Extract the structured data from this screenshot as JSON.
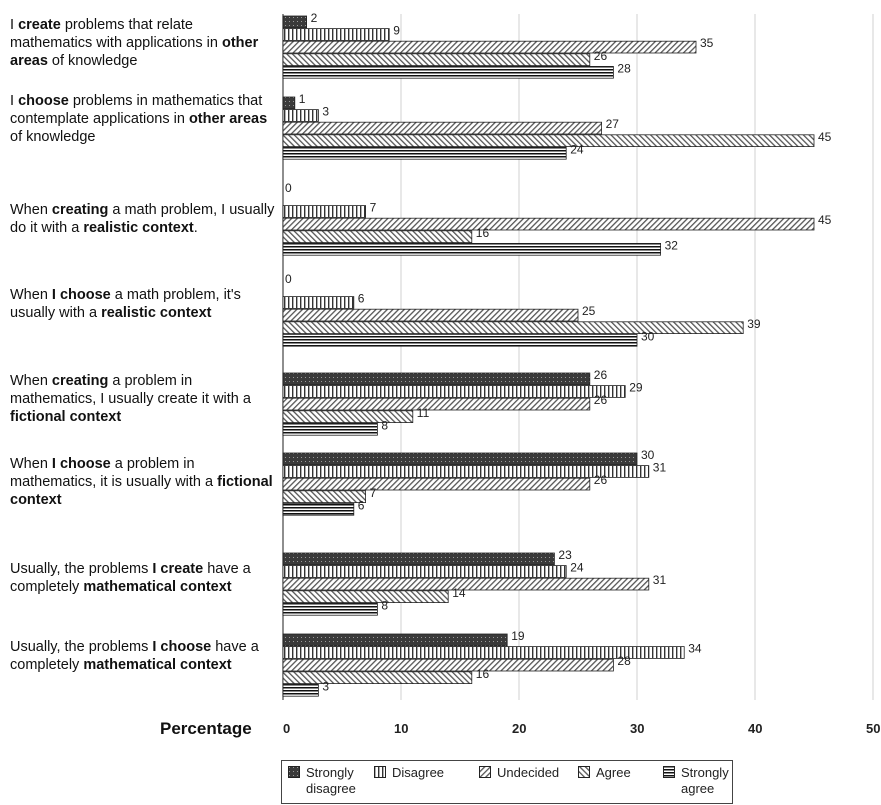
{
  "chart_data": {
    "type": "bar",
    "orientation": "horizontal",
    "xlabel": "Percentage",
    "xlim": [
      0,
      50
    ],
    "xticks": [
      0,
      10,
      20,
      30,
      40,
      50
    ],
    "xtick_labels": [
      "0",
      "10",
      "20",
      "30",
      "40",
      "50"
    ],
    "grid": "vertical",
    "legend_position": "bottom",
    "categories": [
      [
        {
          "t": "I "
        },
        {
          "t": "create",
          "b": true
        },
        {
          "t": " problems that relate mathematics with applications in "
        },
        {
          "t": "other areas",
          "b": true
        },
        {
          "t": " of knowledge"
        }
      ],
      [
        {
          "t": "I "
        },
        {
          "t": "choose",
          "b": true
        },
        {
          "t": " problems in mathematics that contemplate applications in "
        },
        {
          "t": "other areas",
          "b": true
        },
        {
          "t": " of knowledge"
        }
      ],
      [
        {
          "t": "When "
        },
        {
          "t": "creating",
          "b": true
        },
        {
          "t": " a math problem, I usually do it with a "
        },
        {
          "t": "realistic context",
          "b": true
        },
        {
          "t": "."
        }
      ],
      [
        {
          "t": "When "
        },
        {
          "t": "I choose",
          "b": true
        },
        {
          "t": " a math problem, it's usually with a "
        },
        {
          "t": "realistic context",
          "b": true
        }
      ],
      [
        {
          "t": "When "
        },
        {
          "t": "creating",
          "b": true
        },
        {
          "t": " a problem in mathematics, I usually create it with a "
        },
        {
          "t": "fictional context",
          "b": true
        }
      ],
      [
        {
          "t": "When "
        },
        {
          "t": "I choose",
          "b": true
        },
        {
          "t": " a problem in mathematics, it is usually with a "
        },
        {
          "t": "fictional context",
          "b": true
        }
      ],
      [
        {
          "t": "Usually, the problems "
        },
        {
          "t": "I create",
          "b": true
        },
        {
          "t": " have a completely "
        },
        {
          "t": "mathematical context",
          "b": true
        }
      ],
      [
        {
          "t": "Usually, the problems "
        },
        {
          "t": "I choose",
          "b": true
        },
        {
          "t": " have a completely "
        },
        {
          "t": "mathematical context",
          "b": true
        }
      ]
    ],
    "series": [
      {
        "name": "Strongly disagree",
        "pattern": "dots",
        "values": [
          2,
          1,
          0,
          0,
          26,
          30,
          23,
          19
        ]
      },
      {
        "name": "Disagree",
        "pattern": "vertical",
        "values": [
          9,
          3,
          7,
          6,
          29,
          31,
          24,
          34
        ]
      },
      {
        "name": "Undecided",
        "pattern": "diag-right",
        "values": [
          35,
          27,
          45,
          25,
          26,
          26,
          31,
          28
        ]
      },
      {
        "name": "Agree",
        "pattern": "diag-left",
        "values": [
          26,
          45,
          16,
          39,
          11,
          7,
          14,
          16
        ]
      },
      {
        "name": "Strongly agree",
        "pattern": "horizontal",
        "values": [
          28,
          24,
          32,
          30,
          8,
          6,
          8,
          3
        ]
      }
    ]
  }
}
